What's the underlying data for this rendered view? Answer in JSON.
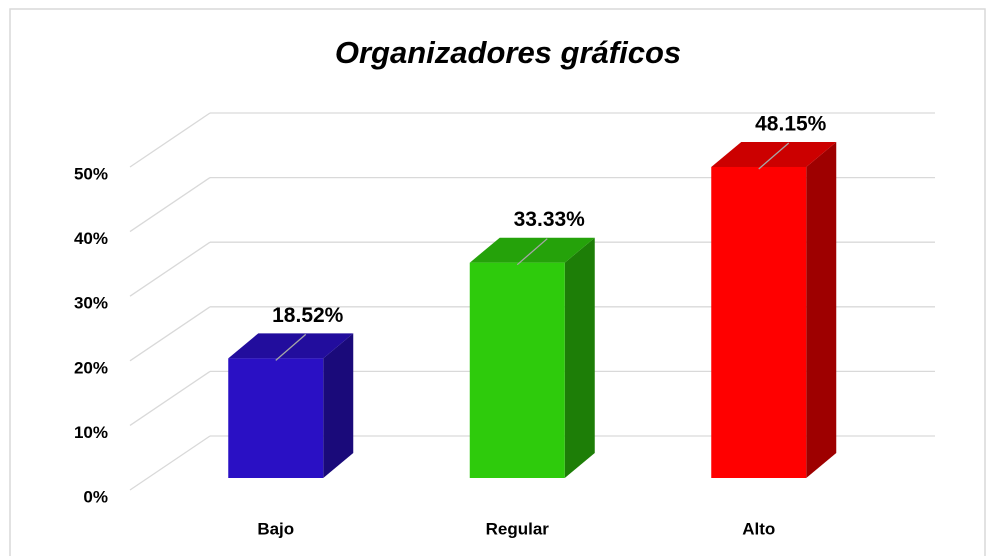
{
  "chart_data": {
    "type": "bar3d",
    "title": "Organizadores gráficos",
    "categories": [
      "Bajo",
      "Regular",
      "Alto"
    ],
    "values": [
      18.52,
      33.33,
      48.15
    ],
    "value_labels": [
      "18.52%",
      "33.33%",
      "48.15%"
    ],
    "colors": [
      "#2a10c4",
      "#2ecb0c",
      "#ff0000"
    ],
    "ylim": [
      0,
      50
    ],
    "yticks": [
      {
        "value": 0,
        "label": "0%"
      },
      {
        "value": 10,
        "label": "10%"
      },
      {
        "value": 20,
        "label": "20%"
      },
      {
        "value": 30,
        "label": "30%"
      },
      {
        "value": 40,
        "label": "40%"
      },
      {
        "value": 50,
        "label": "50%"
      }
    ],
    "grid": true
  }
}
